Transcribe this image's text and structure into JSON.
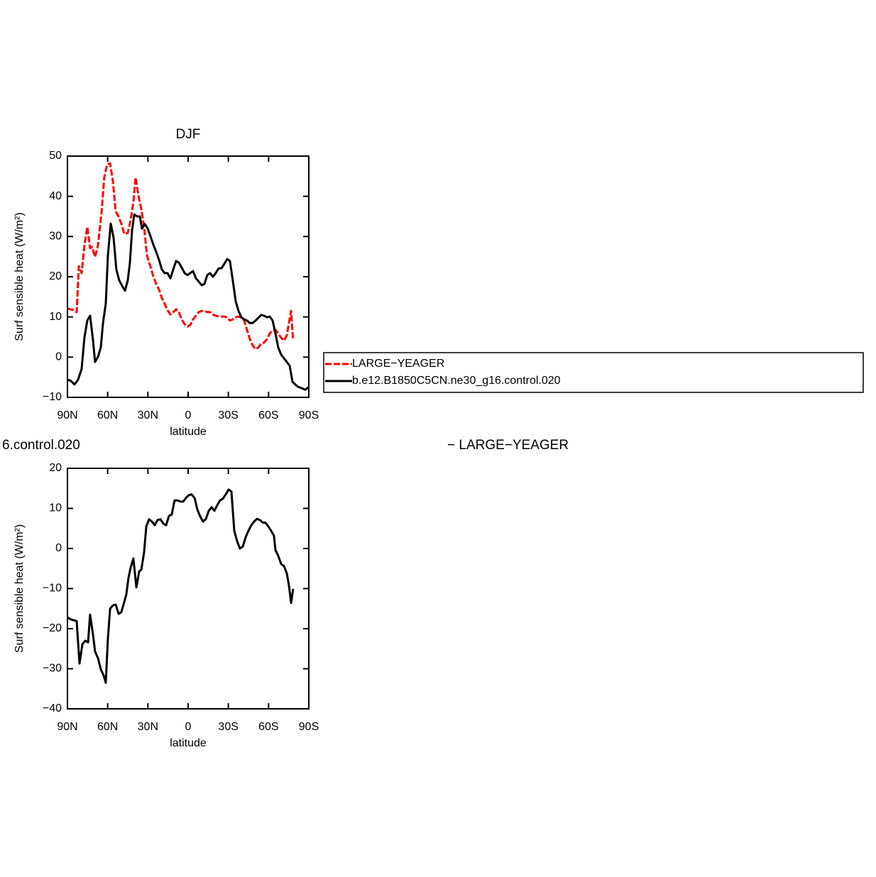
{
  "chart_data": [
    {
      "type": "line",
      "title": "DJF",
      "xlabel": "latitude",
      "ylabel": "Surf sensible heat (W/m²)",
      "xlim": [
        90,
        -90
      ],
      "xticks": [
        {
          "value": 90,
          "label": "90N"
        },
        {
          "value": 60,
          "label": "60N"
        },
        {
          "value": 30,
          "label": "30N"
        },
        0,
        {
          "value": -30,
          "label": "30S"
        },
        {
          "value": -60,
          "label": "60S"
        },
        {
          "value": -90,
          "label": "90S"
        }
      ],
      "ylim": [
        -10,
        50
      ],
      "yticks": [
        {
          "value": -10,
          "label": "−10"
        },
        0,
        10,
        20,
        30,
        40,
        50
      ],
      "legend": "right",
      "series": [
        {
          "name": "LARGE−YEAGER",
          "color": "#ff0000",
          "line_style": "dashed",
          "x": [
            90,
            85.8,
            83.1,
            81.5,
            79.4,
            77.3,
            75.2,
            73.1,
            71.5,
            69.4,
            67.2,
            64.6,
            62.5,
            60.4,
            58.2,
            56.1,
            54,
            51.9,
            49.8,
            47.6,
            45,
            42.9,
            40.8,
            39.2,
            37.1,
            34.9,
            32.8,
            30.7,
            28.1,
            25.9,
            23.8,
            21.7,
            19.6,
            17.5,
            15.4,
            13.2,
            11.1,
            9,
            6.9,
            4.8,
            2.6,
            0.5,
            -1.6,
            -3.7,
            -5.8,
            -7.9,
            -10.1,
            -12.2,
            -14.3,
            -16.4,
            -18.5,
            -20.6,
            -22.8,
            -24.9,
            -27,
            -29.1,
            -31.2,
            -33.3,
            -35.5,
            -37.6,
            -39.7,
            -41.8,
            -43.9,
            -46,
            -48.2,
            -50.3,
            -52.4,
            -54.5,
            -56.6,
            -58.8,
            -60.9,
            -63,
            -65.1,
            -67.2,
            -69.4,
            -71.5,
            -73.6,
            -75.2,
            -76.8,
            -78.3
          ],
          "values": [
            12.1,
            11.7,
            11.2,
            22.6,
            20.9,
            27.9,
            32.4,
            27.1,
            27.4,
            24.9,
            27.9,
            35.9,
            44.7,
            47.9,
            48.2,
            43.8,
            36.2,
            35,
            33.2,
            30.6,
            30.9,
            34.1,
            38.5,
            44.7,
            40.3,
            36.8,
            32.4,
            25.3,
            22.6,
            20,
            18.2,
            16.8,
            14.7,
            13.3,
            11.7,
            10.6,
            11.2,
            11.9,
            11.2,
            9.4,
            8.2,
            7.6,
            8,
            9.4,
            10.3,
            11.2,
            11.5,
            11.5,
            11.2,
            11.2,
            10.6,
            10.3,
            10.1,
            10.1,
            10.1,
            9.9,
            9.1,
            9.4,
            9.9,
            10.1,
            9.8,
            9.1,
            6.8,
            4.5,
            2.9,
            2,
            2.4,
            3.4,
            3.6,
            4.5,
            5.9,
            6.6,
            6.8,
            5.9,
            4.8,
            4.1,
            5.4,
            8.5,
            11.5,
            4.1
          ]
        },
        {
          "name": "b.e12.B1850C5CN.ne30_g16.control.020",
          "color": "#000000",
          "line_style": "solid",
          "x": [
            90,
            87.4,
            84.7,
            82.1,
            79.4,
            77.3,
            75.2,
            73.1,
            70.9,
            69.4,
            67.2,
            65.1,
            63.5,
            61.4,
            59.8,
            57.7,
            55.6,
            53.5,
            51.4,
            49.2,
            47.1,
            45,
            43.4,
            41.8,
            40.2,
            38.1,
            36,
            34.4,
            32.3,
            30.2,
            28.1,
            25.9,
            23.8,
            21.7,
            19.6,
            17.5,
            15.4,
            13.2,
            11.1,
            9,
            6.9,
            4.8,
            2.6,
            0.5,
            -1.6,
            -3.7,
            -5.8,
            -7.9,
            -10.1,
            -12.2,
            -14.3,
            -16.4,
            -18.5,
            -20.6,
            -22.8,
            -24.9,
            -27,
            -29.1,
            -31.2,
            -33.3,
            -35.5,
            -37.6,
            -39.7,
            -41.8,
            -43.9,
            -46,
            -48.2,
            -50.3,
            -52.4,
            -54.5,
            -56.6,
            -58.8,
            -60.9,
            -63,
            -65.1,
            -67.2,
            -69.4,
            -71.5,
            -73.6,
            -75.7,
            -77.8,
            -79.9,
            -82.1,
            -84.7,
            -87.4,
            -90
          ],
          "values": [
            -5.6,
            -5.9,
            -6.8,
            -5.6,
            -2.9,
            5,
            9.1,
            10.3,
            4.1,
            -1.2,
            0.1,
            2.4,
            8.5,
            13.3,
            25.3,
            33.2,
            29.7,
            21.8,
            19.1,
            17.7,
            16.5,
            19.1,
            23.5,
            31.5,
            35.5,
            35,
            35,
            32,
            33.1,
            32,
            30.1,
            27.9,
            26.2,
            24.2,
            21.8,
            20.9,
            20.9,
            19.6,
            21.8,
            23.9,
            23.5,
            22.3,
            20.9,
            20.4,
            20.9,
            21.4,
            19.6,
            18.8,
            17.9,
            18.2,
            20.4,
            20.9,
            20,
            20.9,
            22.1,
            22.1,
            23.2,
            24.4,
            23.9,
            19.1,
            13.8,
            11.5,
            9.9,
            9.4,
            9.1,
            8.5,
            8.5,
            9.1,
            9.8,
            10.5,
            10.3,
            9.9,
            10.1,
            9.1,
            5.9,
            2.4,
            0.6,
            -0.3,
            -1.2,
            -2.1,
            -6.1,
            -6.8,
            -7.4,
            -7.7,
            -8.1,
            -7.4
          ]
        }
      ]
    },
    {
      "type": "line",
      "left_title": "6.control.020",
      "right_title": "− LARGE−YEAGER",
      "xlabel": "latitude",
      "ylabel": "Surf sensible heat (W/m²)",
      "xlim": [
        90,
        -90
      ],
      "xticks": [
        {
          "value": 90,
          "label": "90N"
        },
        {
          "value": 60,
          "label": "60N"
        },
        {
          "value": 30,
          "label": "30N"
        },
        0,
        {
          "value": -30,
          "label": "30S"
        },
        {
          "value": -60,
          "label": "60S"
        },
        {
          "value": -90,
          "label": "90S"
        }
      ],
      "ylim": [
        -40,
        20
      ],
      "yticks": [
        {
          "value": -40,
          "label": "−40"
        },
        {
          "value": -30,
          "label": "−30"
        },
        {
          "value": -20,
          "label": "−20"
        },
        {
          "value": -10,
          "label": "−10"
        },
        0,
        10,
        20
      ],
      "series": [
        {
          "color": "#000000",
          "line_style": "solid",
          "x": [
            90,
            87.4,
            83.1,
            81,
            78.9,
            76.8,
            74.6,
            73.1,
            70.9,
            69.4,
            67.2,
            65.1,
            63,
            61.4,
            59.8,
            58.2,
            56.1,
            54,
            51.9,
            49.8,
            47.6,
            46.1,
            44.5,
            42.9,
            40.8,
            38.6,
            36.5,
            34.9,
            32.8,
            31.2,
            29.1,
            27,
            24.9,
            22.8,
            20.6,
            18.5,
            16.4,
            14.3,
            12.2,
            10.1,
            7.9,
            5.8,
            3.7,
            1.6,
            -0.5,
            -2.6,
            -4.8,
            -6.9,
            -9,
            -11.1,
            -13.2,
            -15.4,
            -17.5,
            -19.6,
            -21.7,
            -23.8,
            -25.9,
            -28.1,
            -30.2,
            -32.3,
            -34.4,
            -36.5,
            -38.6,
            -40.8,
            -42.9,
            -45,
            -47.1,
            -49.2,
            -51.4,
            -53.5,
            -55.6,
            -57.7,
            -59.8,
            -61.9,
            -64,
            -65.1,
            -67.2,
            -69.4,
            -71.5,
            -73.6,
            -75.2,
            -76.8,
            -78.3
          ],
          "values": [
            -17.2,
            -17.7,
            -18.1,
            -28.7,
            -23.9,
            -23,
            -23.4,
            -16.5,
            -21.6,
            -25.7,
            -27.4,
            -30.1,
            -31.7,
            -33.5,
            -22.5,
            -15,
            -14.2,
            -14,
            -16.3,
            -15.9,
            -13.3,
            -11.5,
            -7.4,
            -4.8,
            -2.5,
            -9.7,
            -5.7,
            -5.3,
            -0.9,
            5.5,
            7.3,
            6.7,
            5.8,
            7.1,
            7.3,
            6.2,
            5.8,
            8.1,
            8.5,
            12,
            12,
            11.7,
            11.7,
            12.6,
            13.3,
            13.5,
            12.6,
            9.7,
            8,
            6.7,
            7.3,
            9.4,
            10.3,
            9.4,
            10.8,
            12,
            12.4,
            13.5,
            14.7,
            14.2,
            4.4,
            1.9,
            0,
            0.5,
            2.8,
            4.4,
            5.8,
            6.7,
            7.4,
            7.1,
            6.5,
            6.4,
            5.5,
            4.4,
            3.2,
            -0.4,
            -1.8,
            -3.9,
            -4.4,
            -6.2,
            -9.2,
            -13.6,
            -10.1
          ]
        }
      ]
    }
  ]
}
